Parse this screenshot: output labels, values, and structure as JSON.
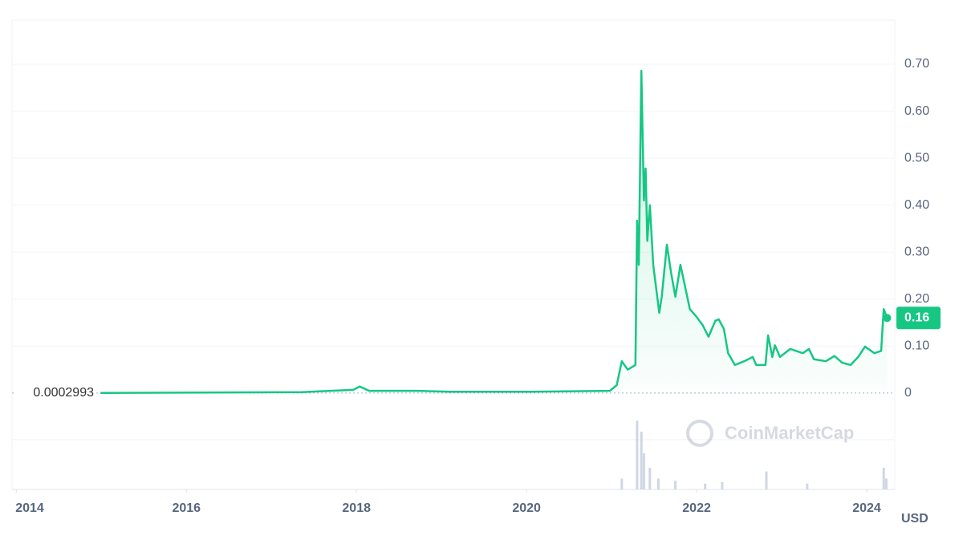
{
  "chart_data": {
    "type": "line",
    "currency": "USD",
    "watermark": "CoinMarketCap",
    "xlim": [
      2013.95,
      2024.33
    ],
    "xticks": [
      2014,
      2016,
      2018,
      2020,
      2022,
      2024
    ],
    "ylim": [
      0,
      0.8
    ],
    "yticks": [
      0,
      {
        "value": 0.1,
        "label": "0.10"
      },
      {
        "value": 0.2,
        "label": "0.20"
      },
      {
        "value": 0.3,
        "label": "0.30"
      },
      {
        "value": 0.4,
        "label": "0.40"
      },
      {
        "value": 0.5,
        "label": "0.50"
      },
      {
        "value": 0.6,
        "label": "0.60"
      },
      {
        "value": 0.7,
        "label": "0.70"
      }
    ],
    "grid": true,
    "series": [
      {
        "color": "#16c784",
        "x": [
          2014.99,
          2017.35,
          2017.96,
          2018.04,
          2018.15,
          2018.72,
          2019.09,
          2020.04,
          2020.98,
          2021.06,
          2021.12,
          2021.19,
          2021.28,
          2021.3,
          2021.32,
          2021.35,
          2021.38,
          2021.4,
          2021.42,
          2021.45,
          2021.49,
          2021.56,
          2021.59,
          2021.65,
          2021.7,
          2021.75,
          2021.81,
          2021.87,
          2021.92,
          2022.0,
          2022.07,
          2022.14,
          2022.22,
          2022.26,
          2022.32,
          2022.37,
          2022.45,
          2022.56,
          2022.66,
          2022.7,
          2022.81,
          2022.84,
          2022.89,
          2022.92,
          2022.98,
          2023.1,
          2023.25,
          2023.32,
          2023.38,
          2023.52,
          2023.62,
          2023.71,
          2023.81,
          2023.9,
          2023.98,
          2024.09,
          2024.17,
          2024.2,
          2024.24
        ],
        "values": [
          0.0002993,
          0.002,
          0.007,
          0.014,
          0.005,
          0.005,
          0.003,
          0.003,
          0.005,
          0.017,
          0.068,
          0.05,
          0.06,
          0.367,
          0.273,
          0.686,
          0.41,
          0.478,
          0.324,
          0.4,
          0.273,
          0.171,
          0.205,
          0.316,
          0.256,
          0.205,
          0.273,
          0.222,
          0.179,
          0.162,
          0.145,
          0.12,
          0.154,
          0.157,
          0.137,
          0.085,
          0.06,
          0.068,
          0.077,
          0.06,
          0.06,
          0.123,
          0.077,
          0.102,
          0.077,
          0.094,
          0.085,
          0.094,
          0.072,
          0.068,
          0.079,
          0.065,
          0.06,
          0.077,
          0.099,
          0.085,
          0.09,
          0.179,
          0.16
        ]
      }
    ],
    "price_markers": [
      {
        "value": 0.0002993,
        "label": "0.0002993"
      },
      {
        "value": 0.16,
        "label": "0.16"
      }
    ],
    "volume": {
      "color": "#cfd6e4",
      "ylim": [
        0,
        100
      ],
      "x": [
        2021.12,
        2021.3,
        2021.35,
        2021.38,
        2021.45,
        2021.55,
        2021.75,
        2022.1,
        2022.3,
        2022.82,
        2023.3,
        2024.2,
        2024.23
      ],
      "values": [
        15,
        95,
        80,
        50,
        30,
        15,
        12,
        8,
        10,
        25,
        8,
        30,
        15
      ]
    }
  }
}
